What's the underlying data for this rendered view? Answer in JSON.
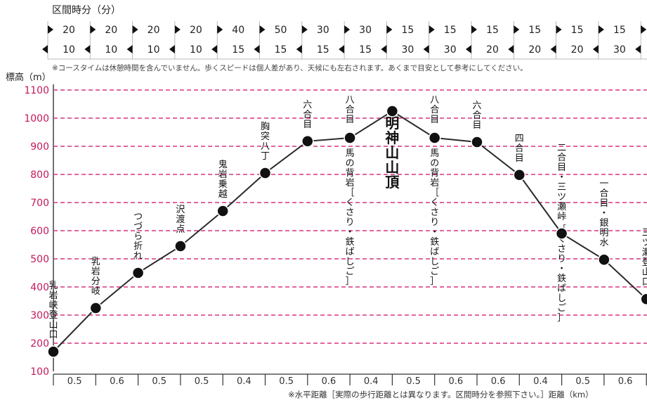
{
  "header": {
    "section_time_title": "区間時分（分）",
    "course_time_note": "※コースタイムは休憩時間を含んでいません。歩くスピードは個人差があり、天候にも左右されます。あくまで目安として参考にしてください。"
  },
  "section_times": {
    "up": [
      "20",
      "20",
      "20",
      "20",
      "40",
      "50",
      "30",
      "30",
      "15",
      "15",
      "15",
      "15",
      "15",
      "15"
    ],
    "down": [
      "10",
      "10",
      "10",
      "10",
      "15",
      "15",
      "15",
      "15",
      "30",
      "30",
      "20",
      "20",
      "20",
      "30"
    ]
  },
  "footer": {
    "distance_note": "※水平距離［実際の歩行距離とは異なります。区間時分を参照下さい。］距離（km）"
  },
  "chart_data": {
    "type": "line",
    "ylabel": "標高（m）",
    "ylim": [
      100,
      1100
    ],
    "yticks": [
      "100",
      "200",
      "300",
      "400",
      "500",
      "600",
      "700",
      "800",
      "900",
      "1000",
      "1100"
    ],
    "grid": true,
    "x_segment_labels": [
      "0.5",
      "0.6",
      "0.5",
      "0.5",
      "0.4",
      "0.5",
      "0.6",
      "0.4",
      "0.5",
      "0.6",
      "0.6",
      "0.4",
      "0.5",
      "0.6"
    ],
    "series": [
      {
        "color": "#2a2a2a",
        "values": [
          170,
          325,
          450,
          545,
          670,
          805,
          918,
          930,
          1025,
          930,
          915,
          798,
          590,
          497,
          357
        ]
      }
    ],
    "point_labels": [
      {
        "text": "乳岩峡登山口",
        "multiline": [
          "乳",
          "岩",
          "峡",
          "登",
          "山",
          "口"
        ]
      },
      {
        "text": "乳岩分岐",
        "multiline": [
          "乳",
          "岩",
          "分",
          "岐"
        ]
      },
      {
        "text": "つづら折れ",
        "multiline": [
          "つ",
          "づ",
          "ら",
          "折",
          "れ"
        ]
      },
      {
        "text": "沢渡点",
        "multiline": [
          "沢",
          "渡",
          "点"
        ]
      },
      {
        "text": "鬼岩乗越",
        "multiline": [
          "鬼",
          "岩",
          "乗",
          "越"
        ]
      },
      {
        "text": "胸突八丁",
        "multiline": [
          "胸",
          "突",
          "八",
          "丁"
        ]
      },
      {
        "text": "六合目",
        "multiline": [
          "六",
          "合",
          "目"
        ]
      },
      {
        "text": "八合目 馬の背岩［くさり・鉄ばしご］",
        "multiline": [
          "八",
          "合",
          "目"
        ],
        "sub": [
          "馬",
          "の",
          "背",
          "岩",
          "［",
          "く",
          "さ",
          "り",
          "・",
          "鉄",
          "ば",
          "し",
          "ご",
          "］"
        ]
      },
      {
        "text": "明神山山頂",
        "multiline": [
          "明",
          "神",
          "山",
          "山",
          "頂"
        ]
      },
      {
        "text": "八合目 馬の背岩［くさり・鉄ばしご］",
        "multiline": [
          "八",
          "合",
          "目"
        ],
        "sub": [
          "馬",
          "の",
          "背",
          "岩",
          "［",
          "く",
          "さ",
          "り",
          "・",
          "鉄",
          "ば",
          "し",
          "ご",
          "］"
        ]
      },
      {
        "text": "六合目",
        "multiline": [
          "六",
          "合",
          "目"
        ]
      },
      {
        "text": "四合目",
        "multiline": [
          "四",
          "合",
          "目"
        ]
      },
      {
        "text": "二合目・三ツ瀬峠［くさり・鉄ばしご］",
        "multiline": [
          "二",
          "合",
          "目",
          "・",
          "三",
          "ツ",
          "瀬",
          "峠"
        ],
        "sub": [
          "［",
          "く",
          "さ",
          "り",
          "・",
          "鉄",
          "ば",
          "し",
          "ご",
          "］"
        ]
      },
      {
        "text": "一合目・銀明水",
        "multiline": [
          "一",
          "合",
          "目",
          "・",
          "銀",
          "明",
          "水"
        ]
      },
      {
        "text": "三ツ瀬登山口",
        "multiline": [
          "三",
          "ツ",
          "瀬",
          "登",
          "山",
          "口"
        ]
      }
    ]
  },
  "colors": {
    "grid": "#d6357f",
    "tick_label": "#c2185b",
    "line": "#2a2a2a",
    "marker": "#111111",
    "arrow": "#111111"
  }
}
